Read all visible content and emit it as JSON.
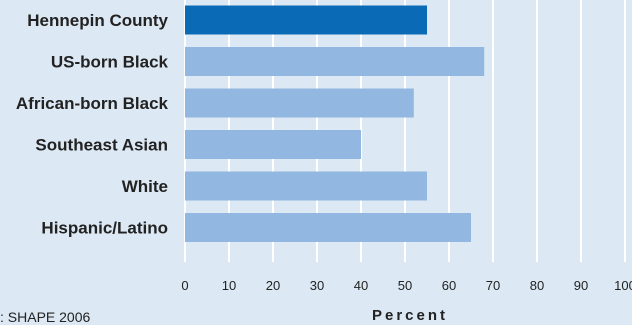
{
  "chart_data": {
    "type": "bar",
    "orientation": "horizontal",
    "categories": [
      "Hennepin County",
      "US-born Black",
      "African-born Black",
      "Southeast Asian",
      "White",
      "Hispanic/Latino"
    ],
    "values": [
      55,
      68,
      52,
      40,
      55,
      65
    ],
    "highlight_category": "Hennepin County",
    "xlabel": "Percent",
    "xlim": [
      0,
      100
    ],
    "xticks": [
      "0",
      "10",
      "20",
      "30",
      "40",
      "50",
      "60",
      "70",
      "80",
      "90",
      "100"
    ],
    "grid": true,
    "colors": {
      "highlight": "#0b6ab5",
      "bar": "#92b8e2",
      "background": "#dce8f3",
      "gridline": "#ffffff"
    }
  },
  "source_note": ": SHAPE 2006"
}
